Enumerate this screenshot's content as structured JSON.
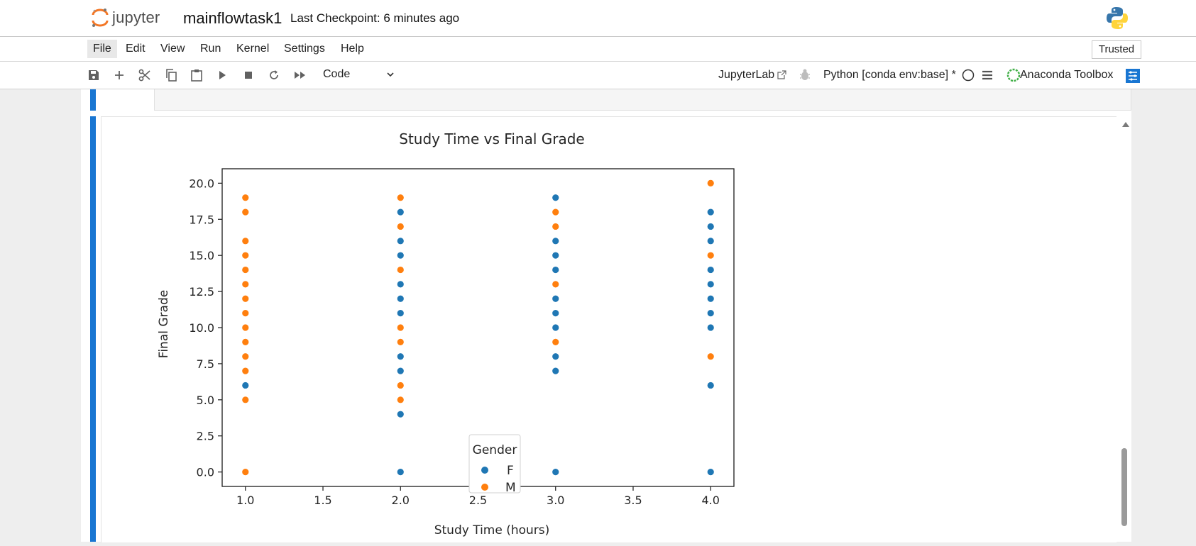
{
  "header": {
    "logo_text": "jupyter",
    "notebook_name": "mainflowtask1",
    "checkpoint": "Last Checkpoint: 6 minutes ago"
  },
  "menu": {
    "items": [
      "File",
      "Edit",
      "View",
      "Run",
      "Kernel",
      "Settings",
      "Help"
    ],
    "active": "File",
    "trusted": "Trusted"
  },
  "toolbar": {
    "icons": [
      "save-icon",
      "add-cell-icon",
      "cut-icon",
      "copy-icon",
      "paste-icon",
      "run-icon",
      "stop-icon",
      "restart-icon",
      "run-all-icon"
    ],
    "cell_type": "Code",
    "jupyterlab_link": "JupyterLab",
    "kernel": "Python [conda env:base] *",
    "anaconda": "Anaconda Toolbox"
  },
  "colors": {
    "accent": "#1976d2",
    "series_f": "#1f77b4",
    "series_m": "#ff7f0e"
  },
  "chart_data": {
    "type": "scatter",
    "title": "Study Time vs Final Grade",
    "xlabel": "Study Time (hours)",
    "ylabel": "Final Grade",
    "xlim": [
      0.85,
      4.15
    ],
    "ylim": [
      -1.0,
      21.0
    ],
    "xticks": [
      "1.0",
      "1.5",
      "2.0",
      "2.5",
      "3.0",
      "3.5",
      "4.0"
    ],
    "yticks": [
      "0.0",
      "2.5",
      "5.0",
      "7.5",
      "10.0",
      "12.5",
      "15.0",
      "17.5",
      "20.0"
    ],
    "legend": {
      "title": "Gender",
      "placement": "lower center"
    },
    "grid": false,
    "series": [
      {
        "name": "F",
        "color": "#1f77b4",
        "points": [
          [
            1,
            6
          ],
          [
            2,
            0
          ],
          [
            2,
            4
          ],
          [
            2,
            7
          ],
          [
            2,
            8
          ],
          [
            2,
            11
          ],
          [
            2,
            12
          ],
          [
            2,
            13
          ],
          [
            2,
            15
          ],
          [
            2,
            16
          ],
          [
            2,
            18
          ],
          [
            3,
            0
          ],
          [
            3,
            7
          ],
          [
            3,
            8
          ],
          [
            3,
            10
          ],
          [
            3,
            11
          ],
          [
            3,
            12
          ],
          [
            3,
            14
          ],
          [
            3,
            15
          ],
          [
            3,
            16
          ],
          [
            3,
            19
          ],
          [
            4,
            0
          ],
          [
            4,
            6
          ],
          [
            4,
            10
          ],
          [
            4,
            11
          ],
          [
            4,
            12
          ],
          [
            4,
            13
          ],
          [
            4,
            14
          ],
          [
            4,
            16
          ],
          [
            4,
            17
          ],
          [
            4,
            18
          ]
        ]
      },
      {
        "name": "M",
        "color": "#ff7f0e",
        "points": [
          [
            1,
            0
          ],
          [
            1,
            5
          ],
          [
            1,
            7
          ],
          [
            1,
            8
          ],
          [
            1,
            9
          ],
          [
            1,
            10
          ],
          [
            1,
            11
          ],
          [
            1,
            12
          ],
          [
            1,
            13
          ],
          [
            1,
            14
          ],
          [
            1,
            15
          ],
          [
            1,
            16
          ],
          [
            1,
            18
          ],
          [
            1,
            19
          ],
          [
            2,
            5
          ],
          [
            2,
            6
          ],
          [
            2,
            9
          ],
          [
            2,
            10
          ],
          [
            2,
            14
          ],
          [
            2,
            17
          ],
          [
            2,
            19
          ],
          [
            3,
            9
          ],
          [
            3,
            13
          ],
          [
            3,
            17
          ],
          [
            3,
            18
          ],
          [
            4,
            8
          ],
          [
            4,
            15
          ],
          [
            4,
            20
          ]
        ]
      }
    ]
  }
}
